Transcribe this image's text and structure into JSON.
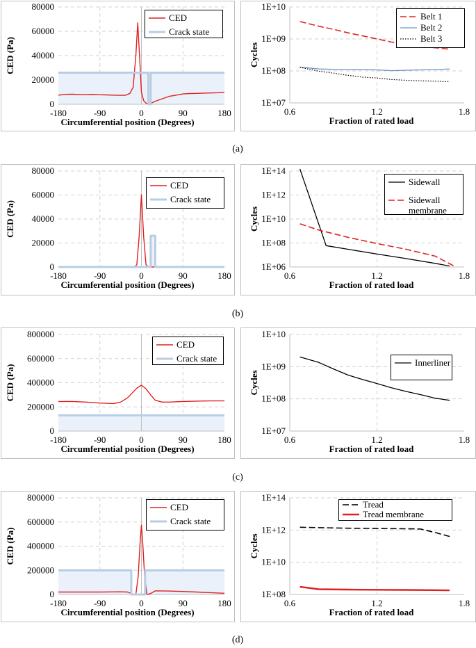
{
  "captions": [
    "(a)",
    "(b)",
    "(c)",
    "(d)"
  ],
  "chart_data": [
    {
      "id": "a-left",
      "type": "line",
      "xlabel": "Circumferential position (Degrees)",
      "ylabel": "CED (Pa)",
      "xlim": [
        -180,
        180
      ],
      "ylim": [
        0,
        80000
      ],
      "xticks": [
        -180,
        -90,
        0,
        90,
        180
      ],
      "yticks": [
        0,
        20000,
        40000,
        60000,
        80000
      ],
      "legend": "top-right",
      "series": [
        {
          "name": "CED",
          "kind": "line",
          "color": "#e02020",
          "x": [
            -180,
            -165,
            -150,
            -135,
            -120,
            -105,
            -90,
            -75,
            -60,
            -45,
            -35,
            -25,
            -18,
            -12,
            -8,
            -4,
            0,
            5,
            10,
            15,
            20,
            30,
            45,
            60,
            75,
            90,
            105,
            120,
            135,
            150,
            165,
            180
          ],
          "y": [
            7500,
            8200,
            8300,
            8000,
            7900,
            8000,
            7800,
            7700,
            7500,
            7400,
            7400,
            9000,
            14000,
            40000,
            67000,
            40000,
            10000,
            3000,
            1000,
            500,
            700,
            2500,
            4500,
            6500,
            7500,
            8500,
            8800,
            9000,
            9200,
            9300,
            9500,
            9800
          ]
        },
        {
          "name": "Crack state",
          "kind": "step",
          "color": "#b8cde3",
          "x": [
            -180,
            15,
            15,
            20,
            20,
            180
          ],
          "y": [
            26000,
            26000,
            0,
            0,
            26000,
            26000
          ]
        }
      ]
    },
    {
      "id": "a-right",
      "type": "line",
      "yscale": "log",
      "xlabel": "Fraction of rated load",
      "ylabel": "Cycles",
      "xlim": [
        0.6,
        1.8
      ],
      "ylim": [
        10000000.0,
        10000000000.0
      ],
      "xticks": [
        0.6,
        1.2,
        1.8
      ],
      "yticks": [
        10000000.0,
        100000000.0,
        1000000000.0,
        10000000000.0
      ],
      "ytick_labels": [
        "1E+07",
        "1E+08",
        "1E+09",
        "1E+10"
      ],
      "legend": "top-right",
      "series": [
        {
          "name": "Belt 1",
          "kind": "dashed",
          "color": "#e02020",
          "x": [
            0.67,
            0.8,
            0.9,
            1.0,
            1.1,
            1.2,
            1.3,
            1.4,
            1.5,
            1.6,
            1.7
          ],
          "y": [
            3500000000.0,
            2500000000.0,
            2000000000.0,
            1550000000.0,
            1250000000.0,
            1000000000.0,
            800000000.0,
            680000000.0,
            600000000.0,
            530000000.0,
            480000000.0
          ]
        },
        {
          "name": "Belt 2",
          "kind": "solid",
          "color": "#6f95c0",
          "x": [
            0.67,
            0.8,
            1.0,
            1.2,
            1.3,
            1.4,
            1.6,
            1.7
          ],
          "y": [
            132000000.0,
            115000000.0,
            110000000.0,
            108000000.0,
            102000000.0,
            105000000.0,
            110000000.0,
            115000000.0
          ]
        },
        {
          "name": "Belt 3",
          "kind": "dotted",
          "color": "#000000",
          "x": [
            0.67,
            0.8,
            0.9,
            1.0,
            1.1,
            1.2,
            1.3,
            1.4,
            1.5,
            1.6,
            1.7
          ],
          "y": [
            130000000.0,
            98000000.0,
            85000000.0,
            73000000.0,
            64000000.0,
            60000000.0,
            54000000.0,
            51000000.0,
            49000000.0,
            48000000.0,
            46000000.0
          ]
        }
      ]
    },
    {
      "id": "b-left",
      "type": "line",
      "xlabel": "Circumferential position (Degrees)",
      "ylabel": "CED (Pa)",
      "xlim": [
        -180,
        180
      ],
      "ylim": [
        0,
        80000
      ],
      "xticks": [
        -180,
        -90,
        0,
        90,
        180
      ],
      "yticks": [
        0,
        20000,
        40000,
        60000,
        80000
      ],
      "legend": "top-right",
      "series": [
        {
          "name": "CED",
          "kind": "line",
          "color": "#e02020",
          "x": [
            -180,
            -15,
            -10,
            -5,
            0,
            5,
            10,
            15,
            180
          ],
          "y": [
            0,
            0,
            2000,
            25000,
            60000,
            25000,
            2000,
            0,
            0
          ]
        },
        {
          "name": "Crack state",
          "kind": "step",
          "color": "#b8cde3",
          "x": [
            -180,
            20,
            20,
            30,
            30,
            180
          ],
          "y": [
            0,
            0,
            26000,
            26000,
            0,
            0
          ]
        }
      ]
    },
    {
      "id": "b-right",
      "type": "line",
      "yscale": "log",
      "xlabel": "Fraction of rated load",
      "ylabel": "Cycles",
      "xlim": [
        0.6,
        1.8
      ],
      "ylim": [
        1000000.0,
        100000000000000.0
      ],
      "xticks": [
        0.6,
        1.2,
        1.8
      ],
      "yticks": [
        1000000.0,
        100000000.0,
        10000000000.0,
        1000000000000.0,
        100000000000000.0
      ],
      "ytick_labels": [
        "1E+06",
        "1E+08",
        "1E+10",
        "1E+12",
        "1E+14"
      ],
      "legend": "top-right",
      "series": [
        {
          "name": "Sidewall",
          "kind": "solid",
          "color": "#000000",
          "x": [
            0.67,
            0.85,
            1.0,
            1.2,
            1.4,
            1.6,
            1.7
          ],
          "y": [
            150000000000000.0,
            60000000.0,
            30000000.0,
            12000000.0,
            5000000.0,
            2000000.0,
            1200000.0
          ]
        },
        {
          "name": "Sidewall membrane",
          "kind": "dashed",
          "color": "#e02020",
          "x": [
            0.67,
            0.8,
            1.0,
            1.2,
            1.4,
            1.6,
            1.73
          ],
          "y": [
            4000000000.0,
            1200000000.0,
            300000000.0,
            90000000.0,
            30000000.0,
            8000000.0,
            1200000.0
          ]
        }
      ]
    },
    {
      "id": "c-left",
      "type": "line",
      "xlabel": "Circumferential position (Degrees)",
      "ylabel": "CED (Pa)",
      "xlim": [
        -180,
        180
      ],
      "ylim": [
        0,
        800000
      ],
      "xticks": [
        -180,
        -90,
        0,
        90,
        180
      ],
      "yticks": [
        0,
        200000,
        400000,
        600000,
        800000
      ],
      "legend": "top-right",
      "series": [
        {
          "name": "CED",
          "kind": "line",
          "color": "#e02020",
          "x": [
            -180,
            -150,
            -120,
            -90,
            -60,
            -45,
            -30,
            -20,
            -10,
            0,
            10,
            20,
            30,
            45,
            60,
            90,
            120,
            150,
            180
          ],
          "y": [
            245000,
            245000,
            240000,
            232000,
            228000,
            240000,
            275000,
            315000,
            355000,
            380000,
            350000,
            300000,
            255000,
            240000,
            240000,
            245000,
            248000,
            250000,
            250000
          ]
        },
        {
          "name": "Crack state",
          "kind": "step",
          "color": "#b8cde3",
          "x": [
            -180,
            180
          ],
          "y": [
            130000,
            130000
          ]
        }
      ]
    },
    {
      "id": "c-right",
      "type": "line",
      "yscale": "log",
      "xlabel": "Fraction of rated load",
      "ylabel": "Cycles",
      "xlim": [
        0.6,
        1.8
      ],
      "ylim": [
        10000000.0,
        10000000000.0
      ],
      "xticks": [
        0.6,
        1.2,
        1.8
      ],
      "yticks": [
        10000000.0,
        100000000.0,
        1000000000.0,
        10000000000.0
      ],
      "ytick_labels": [
        "1E+07",
        "1E+08",
        "1E+09",
        "1E+10"
      ],
      "legend": "top-right",
      "series": [
        {
          "name": "Innerliner",
          "kind": "solid",
          "color": "#000000",
          "x": [
            0.67,
            0.8,
            0.9,
            1.0,
            1.1,
            1.2,
            1.3,
            1.4,
            1.5,
            1.6,
            1.7
          ],
          "y": [
            2000000000.0,
            1350000000.0,
            850000000.0,
            550000000.0,
            400000000.0,
            300000000.0,
            220000000.0,
            170000000.0,
            135000000.0,
            105000000.0,
            90000000.0
          ]
        }
      ]
    },
    {
      "id": "d-left",
      "type": "line",
      "xlabel": "Circumferential position (Degrees)",
      "ylabel": "CED (Pa)",
      "xlim": [
        -180,
        180
      ],
      "ylim": [
        0,
        800000
      ],
      "xticks": [
        -180,
        -90,
        0,
        90,
        180
      ],
      "yticks": [
        0,
        200000,
        400000,
        600000,
        800000
      ],
      "legend": "top-right",
      "series": [
        {
          "name": "CED",
          "kind": "line",
          "color": "#e02020",
          "x": [
            -180,
            -90,
            -45,
            -30,
            -20,
            -12,
            -7,
            -3,
            0,
            3,
            7,
            12,
            20,
            30,
            60,
            90,
            120,
            150,
            180
          ],
          "y": [
            20000,
            20000,
            22000,
            20000,
            5000,
            0,
            150000,
            420000,
            575000,
            420000,
            150000,
            0,
            8000,
            30000,
            28000,
            25000,
            20000,
            15000,
            10000
          ]
        },
        {
          "name": "Crack state",
          "kind": "step",
          "color": "#b8cde3",
          "x": [
            -180,
            -22,
            -22,
            8,
            8,
            180
          ],
          "y": [
            200000,
            200000,
            0,
            0,
            200000,
            200000
          ]
        }
      ]
    },
    {
      "id": "d-right",
      "type": "line",
      "yscale": "log",
      "xlabel": "Fraction of rated load",
      "ylabel": "Cycles",
      "xlim": [
        0.6,
        1.8
      ],
      "ylim": [
        100000000.0,
        100000000000000.0
      ],
      "xticks": [
        0.6,
        1.2,
        1.8
      ],
      "yticks": [
        100000000.0,
        10000000000.0,
        1000000000000.0,
        100000000000000.0
      ],
      "ytick_labels": [
        "1E+08",
        "1E+10",
        "1E+12",
        "1E+14"
      ],
      "legend": "top-right",
      "series": [
        {
          "name": "Tread",
          "kind": "dashed",
          "color": "#000000",
          "x": [
            0.67,
            0.8,
            1.0,
            1.2,
            1.4,
            1.5,
            1.6,
            1.7
          ],
          "y": [
            1500000000000.0,
            1400000000000.0,
            1300000000000.0,
            1250000000000.0,
            1200000000000.0,
            1150000000000.0,
            700000000000.0,
            400000000000.0
          ]
        },
        {
          "name": "Tread membrane",
          "kind": "thick",
          "color": "#e02020",
          "x": [
            0.67,
            0.8,
            1.0,
            1.2,
            1.4,
            1.6,
            1.7
          ],
          "y": [
            300000000.0,
            210000000.0,
            200000000.0,
            195000000.0,
            190000000.0,
            185000000.0,
            180000000.0
          ]
        }
      ]
    }
  ]
}
